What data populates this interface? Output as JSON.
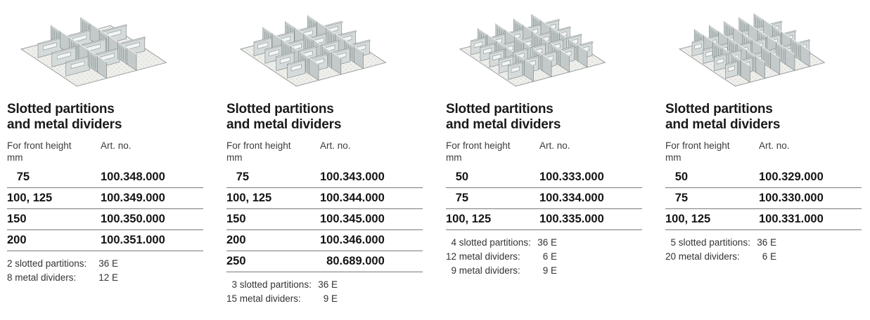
{
  "page": {
    "background": "#ffffff",
    "text_color": "#1c1c1c",
    "rule_color": "#7a7a7a"
  },
  "panels": [
    {
      "title_line1": "Slotted partitions",
      "title_line2": "and metal dividers",
      "table_header": {
        "left_line1": "For front height",
        "left_line2": "mm",
        "right": "Art. no."
      },
      "rows": [
        {
          "height": "   75",
          "art_no": "100.348.000"
        },
        {
          "height": "100, 125",
          "art_no": "100.349.000"
        },
        {
          "height": "150",
          "art_no": "100.350.000"
        },
        {
          "height": "200",
          "art_no": "100.351.000"
        }
      ],
      "notes": [
        {
          "label": "2 slotted partitions:",
          "value": "36 E"
        },
        {
          "label": "8 metal dividers:",
          "value": "12 E"
        }
      ],
      "illustration": {
        "name": "drawer-insert-2-slotted-partitions-8-metal-dividers",
        "partitions": 2,
        "metal_dividers": 8,
        "lane_dividers": [
          3,
          3,
          2
        ]
      }
    },
    {
      "title_line1": "Slotted partitions",
      "title_line2": "and metal dividers",
      "table_header": {
        "left_line1": "For front height",
        "left_line2": "mm",
        "right": "Art. no."
      },
      "rows": [
        {
          "height": "   75",
          "art_no": "100.343.000"
        },
        {
          "height": "100, 125",
          "art_no": "100.344.000"
        },
        {
          "height": "150",
          "art_no": "100.345.000"
        },
        {
          "height": "200",
          "art_no": "100.346.000"
        },
        {
          "height": "250",
          "art_no": "  80.689.000"
        }
      ],
      "notes": [
        {
          "label": "  3 slotted partitions:",
          "value": "36 E"
        },
        {
          "label": "15 metal dividers:",
          "value": "9 E"
        }
      ],
      "illustration": {
        "name": "drawer-insert-3-slotted-partitions-15-metal-dividers",
        "partitions": 3,
        "metal_dividers": 15,
        "lane_dividers": [
          4,
          4,
          4,
          3
        ]
      }
    },
    {
      "title_line1": "Slotted partitions",
      "title_line2": "and metal dividers",
      "table_header": {
        "left_line1": "For front height",
        "left_line2": "mm",
        "right": "Art. no."
      },
      "rows": [
        {
          "height": "   50",
          "art_no": "100.333.000"
        },
        {
          "height": "   75",
          "art_no": "100.334.000"
        },
        {
          "height": "100, 125",
          "art_no": "100.335.000"
        }
      ],
      "notes": [
        {
          "label": "  4 slotted partitions:",
          "value": "36 E"
        },
        {
          "label": "12 metal dividers:",
          "value": "6 E"
        },
        {
          "label": "  9 metal dividers:",
          "value": "9 E"
        }
      ],
      "illustration": {
        "name": "drawer-insert-4-slotted-partitions-21-metal-dividers",
        "partitions": 4,
        "metal_dividers": 21,
        "lane_dividers": [
          5,
          4,
          4,
          4,
          4
        ]
      }
    },
    {
      "title_line1": "Slotted partitions",
      "title_line2": "and metal dividers",
      "table_header": {
        "left_line1": "For front height",
        "left_line2": "mm",
        "right": "Art. no."
      },
      "rows": [
        {
          "height": "   50",
          "art_no": "100.329.000"
        },
        {
          "height": "   75",
          "art_no": "100.330.000"
        },
        {
          "height": "100, 125",
          "art_no": "100.331.000"
        }
      ],
      "notes": [
        {
          "label": "  5 slotted partitions:",
          "value": "36 E"
        },
        {
          "label": "20 metal dividers:",
          "value": "6 E"
        }
      ],
      "illustration": {
        "name": "drawer-insert-5-slotted-partitions-20-metal-dividers",
        "partitions": 5,
        "metal_dividers": 20,
        "lane_dividers": [
          4,
          4,
          3,
          3,
          3,
          3
        ]
      }
    }
  ],
  "illustration_colors": {
    "mat_base": "#eeeeeb",
    "mat_dots": "#d6d6d0",
    "mat_edge": "#9aa0a0",
    "partition_face": "#c4caca",
    "divider_face": "#d5dada",
    "top_lip": "#eceeee",
    "handle": "#f3f4f4",
    "outline": "#7b8383"
  }
}
